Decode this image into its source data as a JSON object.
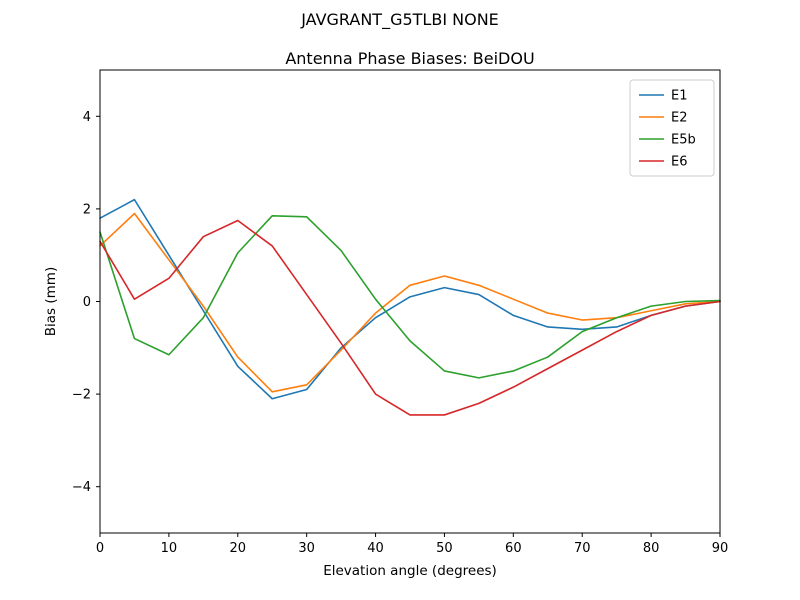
{
  "figure": {
    "suptitle": "JAVGRANT_G5TLBI NONE",
    "background": "#ffffff"
  },
  "chart_data": {
    "type": "line",
    "suptitle": "JAVGRANT_G5TLBI NONE",
    "title": "Antenna Phase Biases: BeiDOU",
    "xlabel": "Elevation angle (degrees)",
    "ylabel": "Bias (mm)",
    "xlim": [
      0,
      90
    ],
    "ylim": [
      -5,
      5
    ],
    "xticks": [
      0,
      10,
      20,
      30,
      40,
      50,
      60,
      70,
      80,
      90
    ],
    "yticks": [
      -4,
      -2,
      0,
      2,
      4
    ],
    "grid": false,
    "legend_position": "upper right",
    "x": [
      0,
      5,
      10,
      15,
      20,
      25,
      30,
      35,
      40,
      45,
      50,
      55,
      60,
      65,
      70,
      75,
      80,
      85,
      90
    ],
    "series": [
      {
        "name": "E1",
        "color": "#1f77b4",
        "values": [
          1.8,
          2.2,
          1.0,
          -0.2,
          -1.4,
          -2.1,
          -1.9,
          -1.0,
          -0.35,
          0.1,
          0.3,
          0.15,
          -0.3,
          -0.55,
          -0.6,
          -0.55,
          -0.3,
          -0.1,
          0.0
        ]
      },
      {
        "name": "E2",
        "color": "#ff7f0e",
        "values": [
          1.2,
          1.9,
          0.9,
          -0.1,
          -1.2,
          -1.95,
          -1.8,
          -1.05,
          -0.25,
          0.35,
          0.55,
          0.35,
          0.05,
          -0.25,
          -0.4,
          -0.35,
          -0.2,
          -0.05,
          0.0
        ]
      },
      {
        "name": "E5b",
        "color": "#2ca02c",
        "values": [
          1.5,
          -0.8,
          -1.15,
          -0.35,
          1.05,
          1.85,
          1.83,
          1.1,
          0.05,
          -0.85,
          -1.5,
          -1.65,
          -1.5,
          -1.2,
          -0.65,
          -0.35,
          -0.1,
          0.0,
          0.02
        ]
      },
      {
        "name": "E6",
        "color": "#d62728",
        "values": [
          1.3,
          0.05,
          0.5,
          1.4,
          1.75,
          1.2,
          0.15,
          -0.9,
          -2.0,
          -2.45,
          -2.45,
          -2.2,
          -1.85,
          -1.45,
          -1.05,
          -0.65,
          -0.3,
          -0.1,
          0.0
        ]
      }
    ]
  }
}
